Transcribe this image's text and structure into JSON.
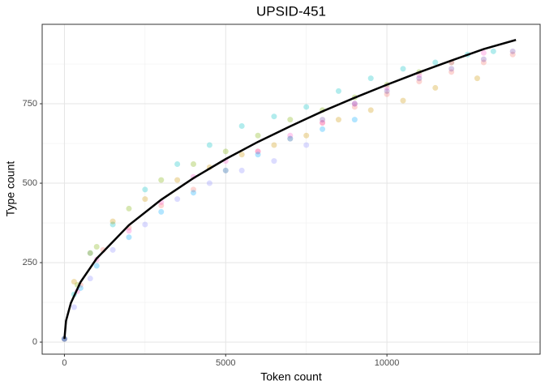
{
  "chart_data": {
    "type": "scatter",
    "title": "UPSID-451",
    "x_label": "Token count",
    "y_label": "Type count",
    "xlim": [
      -690,
      14750
    ],
    "ylim": [
      -38,
      1000
    ],
    "xticks": [
      0,
      5000,
      10000
    ],
    "yticks": [
      0,
      250,
      500,
      750
    ],
    "grid": true,
    "series": [
      {
        "color": "#00BFC4",
        "x": [
          0,
          300,
          800,
          1500,
          2500,
          3500,
          4500,
          5500,
          6500,
          7500,
          8500,
          9500,
          10500,
          11500,
          12500,
          13300
        ],
        "values": [
          10,
          150,
          280,
          370,
          480,
          560,
          620,
          680,
          710,
          740,
          790,
          830,
          860,
          880,
          905,
          915
        ]
      },
      {
        "color": "#7CAE00",
        "x": [
          0,
          400,
          1000,
          2000,
          3000,
          4000,
          5000,
          6000,
          7000,
          8000,
          9000,
          10000,
          11000,
          12000
        ],
        "values": [
          10,
          180,
          300,
          420,
          510,
          560,
          600,
          650,
          700,
          730,
          770,
          810,
          850,
          880
        ]
      },
      {
        "color": "#CD9600",
        "x": [
          0,
          300,
          800,
          1500,
          2500,
          3500,
          4500,
          5500,
          6500,
          7500,
          8500,
          9500,
          10500,
          11500,
          12800
        ],
        "values": [
          10,
          190,
          280,
          380,
          450,
          510,
          550,
          590,
          620,
          650,
          700,
          730,
          760,
          800,
          830
        ]
      },
      {
        "color": "#F8766D",
        "x": [
          0,
          500,
          1200,
          2000,
          3000,
          4000,
          5000,
          6000,
          7000,
          8000,
          9000,
          10000,
          11000,
          12000,
          13000,
          13900
        ],
        "values": [
          10,
          180,
          290,
          360,
          430,
          480,
          540,
          600,
          640,
          690,
          740,
          780,
          820,
          850,
          880,
          905
        ]
      },
      {
        "color": "#FF61CC",
        "x": [
          0,
          400,
          1000,
          2000,
          3000,
          4000,
          5000,
          6000,
          7000,
          8000,
          9000,
          10000,
          11000,
          12000,
          13000
        ],
        "values": [
          10,
          160,
          260,
          350,
          440,
          520,
          570,
          600,
          650,
          690,
          750,
          800,
          840,
          880,
          910
        ]
      },
      {
        "color": "#8C8CFF",
        "x": [
          0,
          300,
          800,
          1500,
          2500,
          3500,
          4500,
          5500,
          6500,
          7500
        ],
        "values": [
          10,
          110,
          200,
          290,
          370,
          450,
          500,
          540,
          570,
          620
        ]
      },
      {
        "color": "#00A9FF",
        "x": [
          0,
          500,
          1000,
          2000,
          3000,
          4000,
          5000,
          6000,
          7000,
          8000,
          9000
        ],
        "values": [
          10,
          170,
          240,
          330,
          410,
          470,
          540,
          590,
          640,
          670,
          700
        ]
      },
      {
        "color": "#7B4FB0",
        "x": [
          8000,
          9000,
          10000,
          11000,
          12000,
          13000,
          13900
        ],
        "values": [
          700,
          750,
          790,
          830,
          860,
          890,
          915
        ]
      }
    ],
    "fit": {
      "color": "#000000",
      "x": [
        0,
        50,
        200,
        500,
        1000,
        2000,
        3000,
        4000,
        5000,
        6000,
        7000,
        8000,
        9000,
        10000,
        11000,
        12000,
        13000,
        14000
      ],
      "values": [
        10,
        67,
        123,
        189,
        263,
        368,
        448,
        516,
        576,
        630,
        679,
        726,
        769,
        810,
        849,
        886,
        922,
        951
      ]
    }
  }
}
